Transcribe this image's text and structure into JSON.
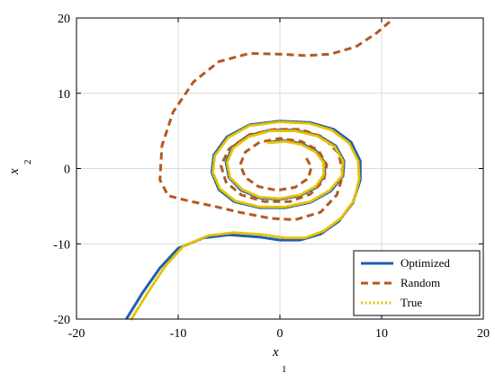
{
  "chart_data": {
    "type": "line",
    "title": "",
    "xlabel": "x",
    "xlabel_sub": "1",
    "ylabel": "x",
    "ylabel_sub": "2",
    "xlim": [
      -20,
      20
    ],
    "ylim": [
      -20,
      20
    ],
    "xticks": [
      -20,
      -10,
      0,
      10,
      20
    ],
    "yticks": [
      -20,
      -10,
      0,
      10,
      20
    ],
    "xtick_labels": [
      "-20",
      "-10",
      "0",
      "10",
      "20"
    ],
    "ytick_labels": [
      "-20",
      "-10",
      "0",
      "10",
      "20"
    ],
    "grid": true,
    "legend_position": "bottom-right",
    "series": [
      {
        "name": "Optimized",
        "color": "#1f5fb0",
        "style": "solid",
        "points": [
          [
            -15.1,
            -20
          ],
          [
            -13.5,
            -16.5
          ],
          [
            -11.8,
            -13.2
          ],
          [
            -10,
            -10.6
          ],
          [
            -7.5,
            -9.2
          ],
          [
            -5,
            -8.8
          ],
          [
            -2,
            -9.1
          ],
          [
            0,
            -9.5
          ],
          [
            2,
            -9.5
          ],
          [
            4,
            -8.7
          ],
          [
            5.8,
            -7
          ],
          [
            7.2,
            -4.5
          ],
          [
            7.9,
            -1.5
          ],
          [
            7.9,
            1
          ],
          [
            7,
            3.5
          ],
          [
            5.3,
            5.2
          ],
          [
            3,
            6.1
          ],
          [
            0,
            6.3
          ],
          [
            -3,
            5.8
          ],
          [
            -5.2,
            4.2
          ],
          [
            -6.5,
            1.8
          ],
          [
            -6.7,
            -0.5
          ],
          [
            -6,
            -2.8
          ],
          [
            -4.5,
            -4.4
          ],
          [
            -2,
            -5.2
          ],
          [
            0.5,
            -5.2
          ],
          [
            3,
            -4.5
          ],
          [
            5,
            -3
          ],
          [
            6.2,
            -1
          ],
          [
            6.3,
            1
          ],
          [
            5.5,
            3
          ],
          [
            3.8,
            4.4
          ],
          [
            1.5,
            5.1
          ],
          [
            -1,
            5.1
          ],
          [
            -3.2,
            4.3
          ],
          [
            -4.7,
            2.8
          ],
          [
            -5.3,
            0.8
          ],
          [
            -5,
            -1.2
          ],
          [
            -3.8,
            -2.9
          ],
          [
            -2,
            -3.9
          ],
          [
            0,
            -4.1
          ],
          [
            2,
            -3.6
          ],
          [
            3.6,
            -2.5
          ],
          [
            4.4,
            -0.9
          ],
          [
            4.4,
            0.8
          ],
          [
            3.6,
            2.3
          ],
          [
            2.2,
            3.3
          ],
          [
            0.5,
            3.7
          ],
          [
            -1.2,
            3.5
          ]
        ]
      },
      {
        "name": "Random",
        "color": "#b35a1f",
        "style": "dashed",
        "points": [
          [
            10.8,
            19.5
          ],
          [
            9.5,
            18
          ],
          [
            7.5,
            16.2
          ],
          [
            5,
            15.2
          ],
          [
            2.5,
            15
          ],
          [
            0,
            15.2
          ],
          [
            -3,
            15.3
          ],
          [
            -6,
            14.2
          ],
          [
            -8.5,
            11.5
          ],
          [
            -10.5,
            7.5
          ],
          [
            -11.6,
            3
          ],
          [
            -11.8,
            -1.5
          ],
          [
            -11,
            -3.6
          ],
          [
            -9,
            -4.3
          ],
          [
            -6.5,
            -5
          ],
          [
            -4,
            -5.8
          ],
          [
            -1,
            -6.6
          ],
          [
            1.5,
            -6.8
          ],
          [
            4,
            -5.8
          ],
          [
            5.6,
            -3.5
          ],
          [
            6.2,
            -0.8
          ],
          [
            5.8,
            2
          ],
          [
            4.2,
            4.2
          ],
          [
            2,
            5.2
          ],
          [
            -0.5,
            5.2
          ],
          [
            -3,
            4.5
          ],
          [
            -5,
            2.6
          ],
          [
            -5.8,
            0.4
          ],
          [
            -5.3,
            -1.8
          ],
          [
            -3.8,
            -3.5
          ],
          [
            -1.5,
            -4.4
          ],
          [
            1,
            -4.4
          ],
          [
            3,
            -3.4
          ],
          [
            4.3,
            -1.6
          ],
          [
            4.6,
            0.5
          ],
          [
            3.8,
            2.4
          ],
          [
            2.1,
            3.6
          ],
          [
            0,
            4
          ],
          [
            -2,
            3.5
          ],
          [
            -3.4,
            2.2
          ],
          [
            -3.9,
            0.5
          ],
          [
            -3.4,
            -1.2
          ],
          [
            -2.1,
            -2.4
          ],
          [
            -0.3,
            -2.9
          ],
          [
            1.5,
            -2.5
          ],
          [
            2.8,
            -1.3
          ],
          [
            3.1,
            0.2
          ],
          [
            2.5,
            1.6
          ]
        ]
      },
      {
        "name": "True",
        "color": "#e6c200",
        "style": "dotted",
        "points": [
          [
            -14.6,
            -20
          ],
          [
            -13,
            -16.5
          ],
          [
            -11.3,
            -13
          ],
          [
            -9.5,
            -10.3
          ],
          [
            -7,
            -8.9
          ],
          [
            -4.5,
            -8.5
          ],
          [
            -1.5,
            -8.8
          ],
          [
            0.5,
            -9.2
          ],
          [
            2.5,
            -9.2
          ],
          [
            4.3,
            -8.3
          ],
          [
            6,
            -6.6
          ],
          [
            7.3,
            -4.2
          ],
          [
            7.8,
            -1.4
          ],
          [
            7.7,
            1
          ],
          [
            6.8,
            3.4
          ],
          [
            5.1,
            5.1
          ],
          [
            2.9,
            6
          ],
          [
            0,
            6.2
          ],
          [
            -3,
            5.7
          ],
          [
            -5.1,
            4.1
          ],
          [
            -6.4,
            1.7
          ],
          [
            -6.6,
            -0.5
          ],
          [
            -5.9,
            -2.7
          ],
          [
            -4.4,
            -4.3
          ],
          [
            -2,
            -5.1
          ],
          [
            0.5,
            -5.1
          ],
          [
            3,
            -4.4
          ],
          [
            4.9,
            -2.9
          ],
          [
            6.1,
            -1
          ],
          [
            6.2,
            1
          ],
          [
            5.4,
            2.9
          ],
          [
            3.7,
            4.3
          ],
          [
            1.5,
            5
          ],
          [
            -1,
            5
          ],
          [
            -3.1,
            4.2
          ],
          [
            -4.6,
            2.7
          ],
          [
            -5.2,
            0.8
          ],
          [
            -4.9,
            -1.2
          ],
          [
            -3.7,
            -2.8
          ],
          [
            -2,
            -3.8
          ],
          [
            0,
            -4
          ],
          [
            2,
            -3.5
          ],
          [
            3.5,
            -2.4
          ],
          [
            4.3,
            -0.9
          ],
          [
            4.3,
            0.8
          ],
          [
            3.5,
            2.2
          ],
          [
            2.1,
            3.2
          ],
          [
            0.5,
            3.6
          ],
          [
            -1.2,
            3.4
          ]
        ]
      }
    ]
  }
}
